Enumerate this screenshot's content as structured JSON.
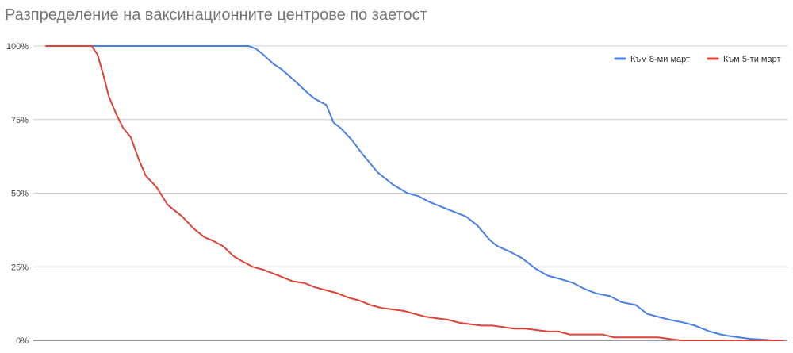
{
  "chart_data": {
    "type": "line",
    "title": "Разпределение на ваксинационните центрове по заетост",
    "xlabel": "",
    "ylabel": "",
    "ylim": [
      0,
      100
    ],
    "y_ticks": [
      "0%",
      "25%",
      "50%",
      "75%",
      "100%"
    ],
    "y_tick_values": [
      0,
      25,
      50,
      75,
      100
    ],
    "grid": true,
    "legend_position": "top-right",
    "x_note": "x is the normalized rank of the centre (0 = first, 100 = last)",
    "series": [
      {
        "name": "Към 8-ми март",
        "color": "#4a7ee8",
        "x": [
          0,
          27.5,
          28.5,
          29.5,
          30.8,
          32,
          33.8,
          35.5,
          36.5,
          38,
          39,
          40,
          41.5,
          43,
          45,
          47,
          49,
          50.5,
          52,
          53.5,
          55,
          57,
          58.5,
          60.2,
          61.2,
          63,
          64.5,
          66.3,
          68,
          69.5,
          71.5,
          73,
          74.5,
          76.5,
          78,
          80,
          81.5,
          83,
          84.5,
          86.5,
          88,
          90,
          91.5,
          92.5,
          94,
          95.5,
          97,
          98.5,
          99.3,
          100
        ],
        "y": [
          100,
          100,
          99,
          97,
          94,
          92,
          88,
          84,
          82,
          80,
          74,
          72,
          68,
          63,
          57,
          53,
          50,
          49,
          47,
          45.5,
          44,
          42,
          39,
          34,
          32,
          30,
          28,
          24.5,
          22,
          21,
          19.5,
          17.5,
          16,
          15,
          13,
          12,
          9,
          8,
          7,
          6,
          5,
          3,
          2,
          1.5,
          1,
          0.5,
          0.3,
          0,
          0,
          0
        ]
      },
      {
        "name": "Към 5-ти март",
        "color": "#db4437",
        "x": [
          0,
          6.2,
          7,
          7.8,
          8.5,
          9.5,
          10.5,
          11.5,
          12.5,
          13.5,
          15,
          16.5,
          17.5,
          18.5,
          20,
          21.5,
          22.5,
          24,
          25.5,
          26.5,
          28,
          29.5,
          30.5,
          32,
          33.5,
          35,
          36.5,
          38,
          39.5,
          41,
          42.5,
          44,
          45.5,
          47,
          48.5,
          50,
          51.5,
          53,
          54.5,
          56,
          57.5,
          59,
          60.5,
          62,
          63.5,
          65,
          66.5,
          68,
          69.5,
          71,
          72.5,
          74,
          75.5,
          77,
          78.5,
          80,
          81.5,
          83,
          84.5,
          86,
          87.5,
          89,
          90.5,
          92,
          93.5,
          95,
          96.5,
          98,
          100
        ],
        "y": [
          100,
          100,
          97,
          90,
          83,
          77,
          72,
          69,
          62,
          56,
          52,
          46,
          44,
          42,
          38,
          35,
          34,
          32,
          28.5,
          27,
          25,
          24,
          23,
          21.5,
          20,
          19.5,
          18,
          17,
          16,
          14.5,
          13.5,
          12,
          11,
          10.5,
          10,
          9,
          8,
          7.5,
          7,
          6,
          5.5,
          5,
          5,
          4.5,
          4,
          4,
          3.5,
          3,
          3,
          2,
          2,
          2,
          2,
          1,
          1,
          1,
          1,
          1,
          0.5,
          0,
          0,
          0,
          0,
          0,
          0,
          0,
          0,
          0,
          0
        ]
      }
    ]
  }
}
